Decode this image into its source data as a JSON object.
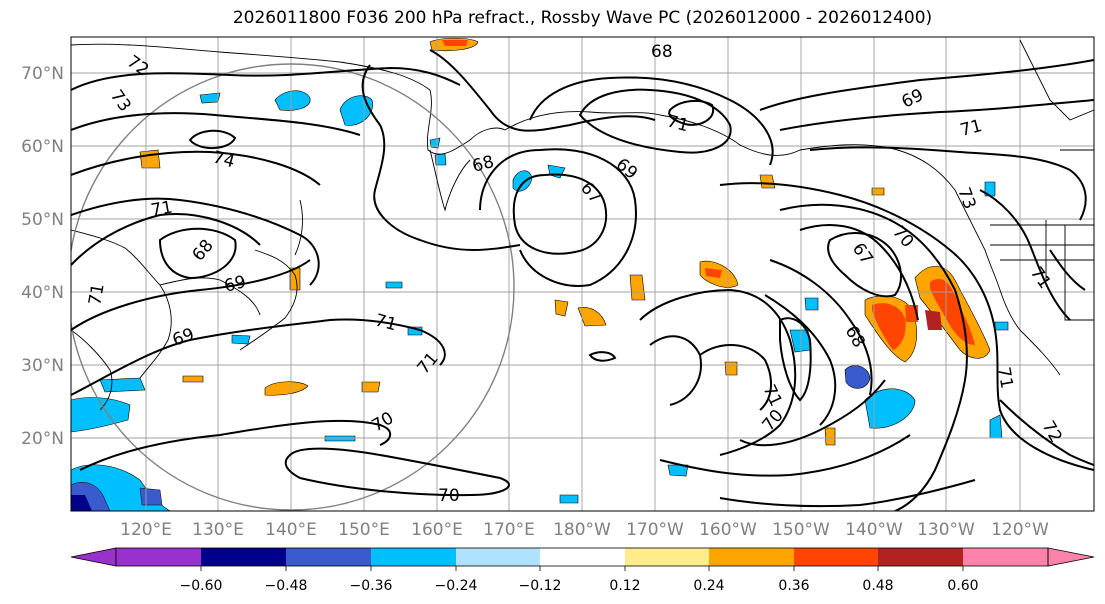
{
  "title": "2026011800 F036 200 hPa refract., Rossby Wave PC (2026012000 - 2026012400)",
  "lat_labels": [
    "70°N",
    "60°N",
    "50°N",
    "40°N",
    "30°N",
    "20°N"
  ],
  "lon_labels": [
    "120°E",
    "130°E",
    "140°E",
    "150°E",
    "160°E",
    "170°E",
    "180°W",
    "170°W",
    "160°W",
    "150°W",
    "140°W",
    "130°W",
    "120°W"
  ],
  "colorbar": {
    "labels": [
      "−0.60",
      "−0.48",
      "−0.36",
      "−0.24",
      "−0.12",
      "0.12",
      "0.24",
      "0.36",
      "0.48",
      "0.60"
    ],
    "colors": [
      "#9932cc",
      "#00008b",
      "#3a5bcd",
      "#00bfff",
      "#b0e2ff",
      "#ffffff",
      "#ffec8b",
      "#ffa500",
      "#ff4500",
      "#b22222",
      "#ff82ab"
    ]
  },
  "contour_labels": [
    "72",
    "73",
    "74",
    "71",
    "68",
    "69",
    "71",
    "69",
    "68",
    "71",
    "69",
    "67",
    "68",
    "71",
    "69",
    "71",
    "73",
    "70",
    "67",
    "68",
    "71",
    "70",
    "71",
    "72",
    "71",
    "70",
    "71",
    "70"
  ]
}
